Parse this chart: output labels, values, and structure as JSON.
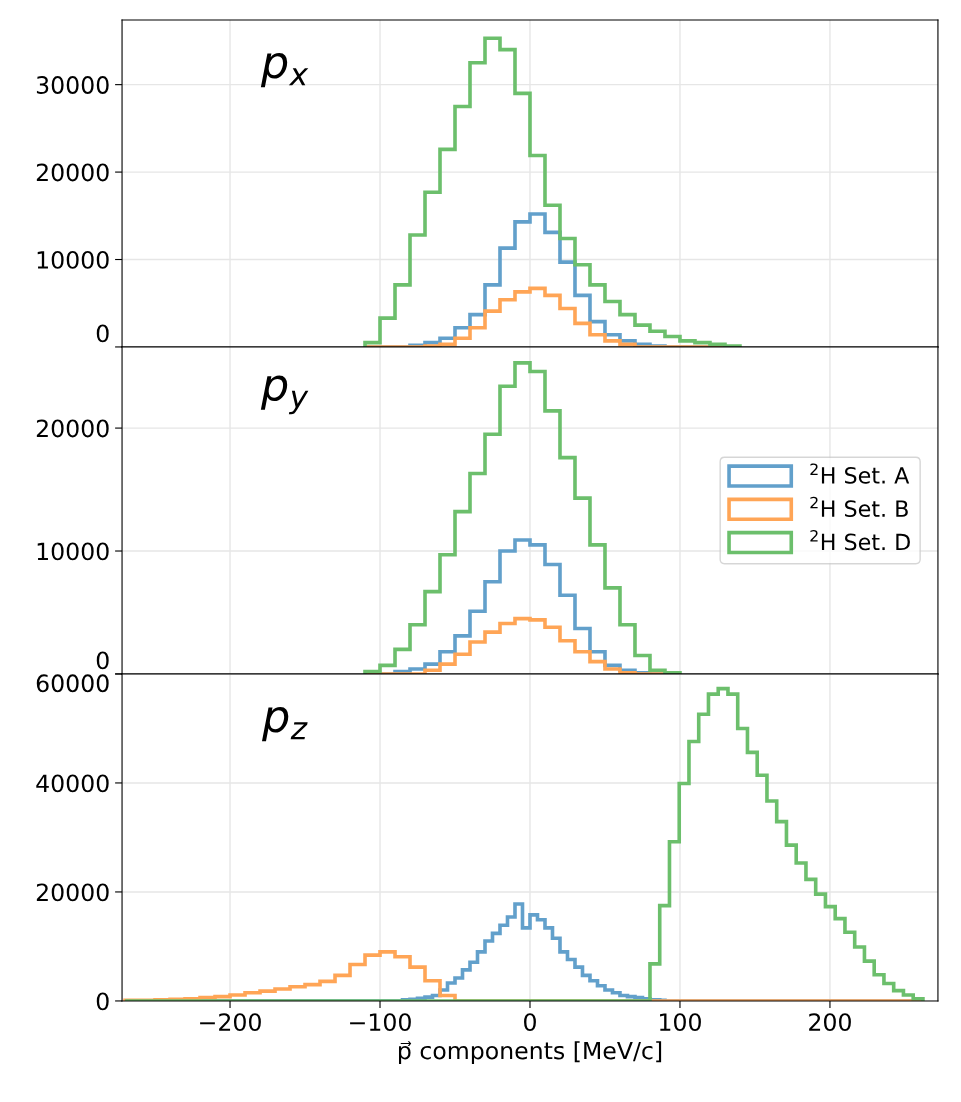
{
  "chart_data": [
    {
      "type": "histogram",
      "annotations": [
        "p$_{x}$"
      ],
      "xlim": [
        -272,
        272
      ],
      "xticks": [
        -200,
        -100,
        0,
        100,
        200
      ],
      "ylim": [
        0,
        37400
      ],
      "yticks": [
        0,
        10000,
        20000,
        30000
      ],
      "grid": true,
      "tick_labels": "y",
      "bins": [
        -110,
        -100,
        -90,
        -80,
        -70,
        -60,
        -50,
        -40,
        -30,
        -20,
        -10,
        0,
        10,
        20,
        30,
        40,
        50,
        60,
        70,
        80,
        90,
        100,
        110,
        120,
        130,
        140
      ],
      "series": [
        {
          "color": "#62a0cb",
          "values": [
            0,
            0,
            0,
            200,
            500,
            1000,
            2200,
            3700,
            7100,
            11300,
            14300,
            15200,
            13100,
            9700,
            5900,
            2900,
            1400,
            700,
            300,
            100,
            0,
            0,
            0,
            0,
            0
          ]
        },
        {
          "color": "#ffa556",
          "values": [
            0,
            0,
            0,
            0,
            100,
            300,
            1000,
            2200,
            4100,
            5400,
            6300,
            6700,
            5900,
            4400,
            2700,
            1400,
            700,
            300,
            0,
            0,
            0,
            0,
            0,
            0,
            0
          ]
        },
        {
          "color": "#6cbf6c",
          "values": [
            500,
            3300,
            7100,
            12800,
            17700,
            22600,
            27500,
            32500,
            35300,
            34000,
            29000,
            21900,
            16200,
            12400,
            9400,
            7100,
            5200,
            3700,
            2500,
            1800,
            1200,
            700,
            500,
            300,
            100
          ]
        }
      ]
    },
    {
      "type": "histogram",
      "annotations": [
        "p$_{y}$"
      ],
      "xlim": [
        -272,
        272
      ],
      "xticks": [
        -200,
        -100,
        0,
        100,
        200
      ],
      "ylim": [
        0,
        26600
      ],
      "yticks": [
        0,
        10000,
        20000
      ],
      "grid": true,
      "tick_labels": "y",
      "legend": "right",
      "bins": [
        -110,
        -100,
        -90,
        -80,
        -70,
        -60,
        -50,
        -40,
        -30,
        -20,
        -10,
        0,
        10,
        20,
        30,
        40,
        50,
        60,
        70,
        80,
        90,
        100
      ],
      "series": [
        {
          "name": "$^{2}$H Set. A",
          "color": "#62a0cb",
          "values": [
            0,
            0,
            200,
            400,
            800,
            1800,
            3100,
            5100,
            7500,
            10000,
            10900,
            10500,
            8900,
            6400,
            3700,
            1800,
            700,
            300,
            100,
            0,
            0
          ]
        },
        {
          "name": "$^{2}$H Set. B",
          "color": "#ffa556",
          "values": [
            0,
            0,
            0,
            0,
            300,
            800,
            1600,
            2600,
            3400,
            4100,
            4500,
            4400,
            3800,
            2700,
            1800,
            1000,
            400,
            100,
            0,
            0,
            0
          ]
        },
        {
          "name": "$^{2}$H Set. D",
          "color": "#6cbf6c",
          "values": [
            200,
            700,
            2000,
            4000,
            6700,
            9700,
            13200,
            16300,
            19500,
            23400,
            25300,
            24600,
            21400,
            17600,
            14300,
            10500,
            7000,
            4000,
            1500,
            300,
            100
          ]
        }
      ]
    },
    {
      "type": "histogram",
      "annotations": [
        "p$_{z}$"
      ],
      "xlabel": "p⃗ components [MeV/c]",
      "xlim": [
        -272,
        272
      ],
      "xticks": [
        -200,
        -100,
        0,
        100,
        200
      ],
      "ylim": [
        0,
        60000
      ],
      "yticks": [
        0,
        20000,
        40000,
        60000
      ],
      "grid": true,
      "bins": [
        -270,
        -260,
        -250,
        -240,
        -230,
        -220,
        -210,
        -200,
        -190,
        -180,
        -170,
        -160,
        -150,
        -140,
        -130,
        -120,
        -110,
        -100,
        -90,
        -85,
        -80,
        -75,
        -70,
        -65,
        -60,
        -55,
        -50,
        -45,
        -40,
        -35,
        -30,
        -25,
        -20,
        -15,
        -10,
        -5,
        0,
        5,
        10,
        15,
        20,
        25,
        30,
        35,
        40,
        45,
        50,
        55,
        60,
        65,
        70,
        75,
        80,
        86.5,
        90,
        93,
        99.5,
        106,
        112.5,
        119,
        125.5,
        132,
        138.5,
        145,
        151.5,
        158,
        164.5,
        171,
        177.5,
        184,
        190.5,
        197,
        203.5,
        210,
        216.5,
        223,
        229.5,
        236,
        242.5,
        249,
        255.5,
        262
      ],
      "series": [
        {
          "color": "#62a0cb",
          "values": [
            0,
            0,
            0,
            0,
            0,
            0,
            0,
            0,
            0,
            0,
            0,
            0,
            0,
            0,
            0,
            0,
            0,
            0,
            0,
            200,
            300,
            500,
            700,
            1000,
            2000,
            3300,
            4200,
            5700,
            7100,
            9000,
            11000,
            12400,
            13900,
            15400,
            17800,
            13400,
            15800,
            14900,
            13400,
            11500,
            9000,
            7600,
            6200,
            4700,
            3700,
            2800,
            2000,
            1500,
            1000,
            800,
            600,
            400,
            200,
            100,
            0,
            0,
            0,
            0,
            0,
            0,
            0,
            0,
            0,
            0,
            0,
            0,
            0,
            0,
            0,
            0,
            0,
            0,
            0,
            0,
            0,
            0,
            0,
            0,
            0,
            0,
            0
          ]
        },
        {
          "color": "#ffa556",
          "values": [
            100,
            100,
            200,
            300,
            400,
            600,
            800,
            1100,
            1500,
            1800,
            2200,
            2600,
            3000,
            3600,
            4700,
            6700,
            8400,
            9000,
            8100,
            8100,
            6200,
            6200,
            3700,
            3700,
            1000,
            1000,
            0,
            0,
            0,
            0,
            0,
            0,
            0,
            0,
            0,
            0,
            0,
            0,
            0,
            0,
            0,
            0,
            0,
            0,
            0,
            0,
            0,
            0,
            0,
            0,
            0,
            0,
            0,
            0,
            0,
            0,
            0,
            0,
            0,
            0,
            0,
            0,
            0,
            0,
            0,
            0,
            0,
            0,
            0,
            0,
            0,
            0,
            0,
            0,
            0,
            0,
            0,
            0,
            0,
            0,
            0
          ]
        },
        {
          "color": "#6cbf6c",
          "values": [
            0,
            0,
            0,
            0,
            0,
            0,
            0,
            0,
            0,
            0,
            0,
            0,
            0,
            0,
            0,
            0,
            0,
            0,
            0,
            0,
            0,
            0,
            0,
            0,
            0,
            0,
            0,
            0,
            0,
            0,
            0,
            0,
            0,
            0,
            0,
            0,
            0,
            0,
            0,
            0,
            0,
            0,
            0,
            0,
            0,
            0,
            0,
            0,
            0,
            0,
            0,
            0,
            6800,
            17500,
            17500,
            29200,
            39900,
            47600,
            52600,
            56300,
            57300,
            56300,
            50000,
            45600,
            41400,
            36700,
            32900,
            28600,
            25300,
            22300,
            19600,
            17300,
            15100,
            12600,
            9900,
            7300,
            4800,
            3200,
            1900,
            1100,
            400
          ]
        }
      ]
    }
  ]
}
